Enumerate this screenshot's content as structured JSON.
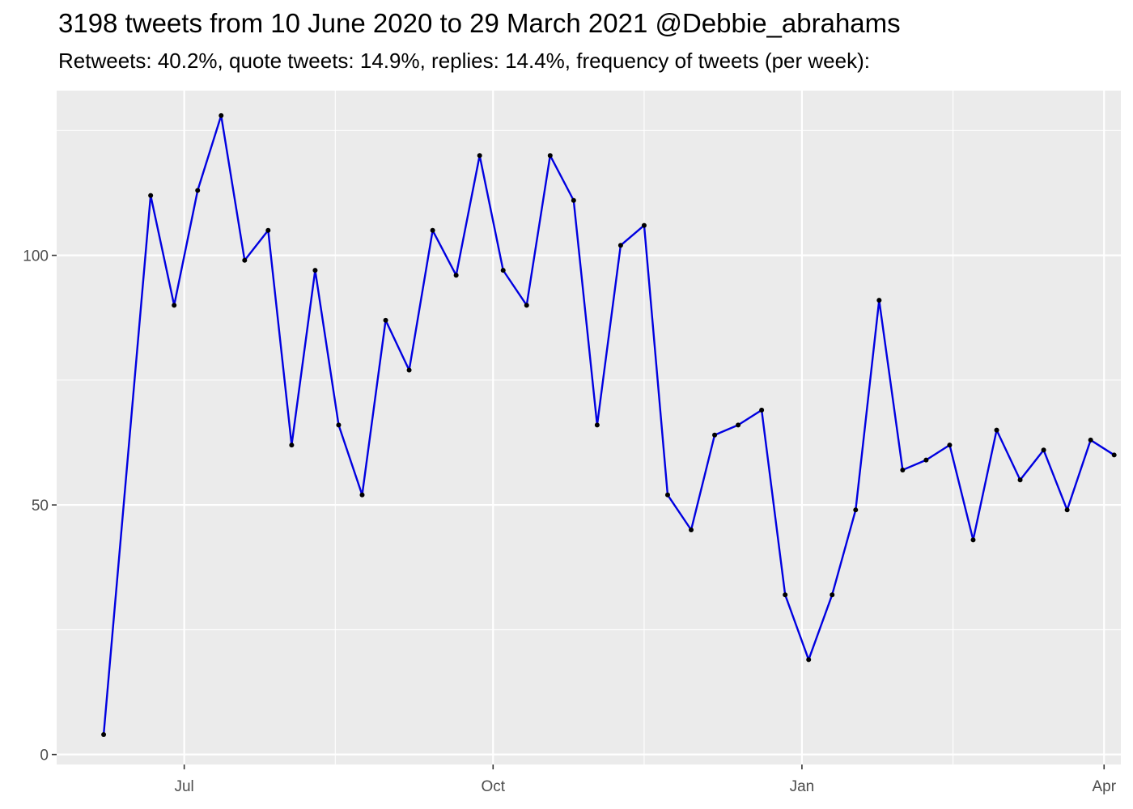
{
  "chart_data": {
    "type": "line",
    "title": "3198 tweets from 10 June 2020 to 29 March 2021 @Debbie_abrahams",
    "subtitle": "Retweets: 40.2%, quote tweets: 14.9%, replies: 14.4%, frequency of tweets (per week):",
    "xlabel": "",
    "ylabel": "",
    "x_ticks": [
      {
        "label": "Jul",
        "date": "2020-07-01"
      },
      {
        "label": "Oct",
        "date": "2020-10-01"
      },
      {
        "label": "Jan",
        "date": "2021-01-01"
      },
      {
        "label": "Apr",
        "date": "2021-04-01"
      }
    ],
    "x_minor_dates": [
      "2020-08-15",
      "2020-11-15",
      "2021-02-15"
    ],
    "y_ticks": [
      0,
      50,
      100
    ],
    "y_minor": [
      25,
      75,
      125
    ],
    "xlim": [
      "2020-05-24",
      "2021-04-06"
    ],
    "ylim": [
      -2,
      133
    ],
    "grid": true,
    "colors": {
      "line": "#0000e0",
      "points": "#000000",
      "panel": "#ebebeb",
      "grid": "#ffffff"
    },
    "series": [
      {
        "x": [
          "2020-06-07",
          "2020-06-21",
          "2020-06-28",
          "2020-07-05",
          "2020-07-12",
          "2020-07-19",
          "2020-07-26",
          "2020-08-02",
          "2020-08-09",
          "2020-08-16",
          "2020-08-23",
          "2020-08-30",
          "2020-09-06",
          "2020-09-13",
          "2020-09-20",
          "2020-09-27",
          "2020-10-04",
          "2020-10-11",
          "2020-10-18",
          "2020-10-25",
          "2020-11-01",
          "2020-11-08",
          "2020-11-15",
          "2020-11-22",
          "2020-11-29",
          "2020-12-06",
          "2020-12-13",
          "2020-12-20",
          "2020-12-27",
          "2021-01-03",
          "2021-01-10",
          "2021-01-17",
          "2021-01-24",
          "2021-01-31",
          "2021-02-07",
          "2021-02-14",
          "2021-02-21",
          "2021-02-28",
          "2021-03-07",
          "2021-03-14",
          "2021-03-21",
          "2021-03-28",
          "2021-04-04"
        ],
        "values": [
          4,
          112,
          90,
          113,
          128,
          99,
          105,
          62,
          97,
          66,
          52,
          87,
          77,
          105,
          96,
          120,
          97,
          90,
          120,
          111,
          66,
          102,
          106,
          52,
          45,
          64,
          66,
          69,
          32,
          19,
          32,
          49,
          91,
          57,
          59,
          62,
          43,
          65,
          55,
          61,
          49,
          63,
          60
        ]
      }
    ]
  }
}
